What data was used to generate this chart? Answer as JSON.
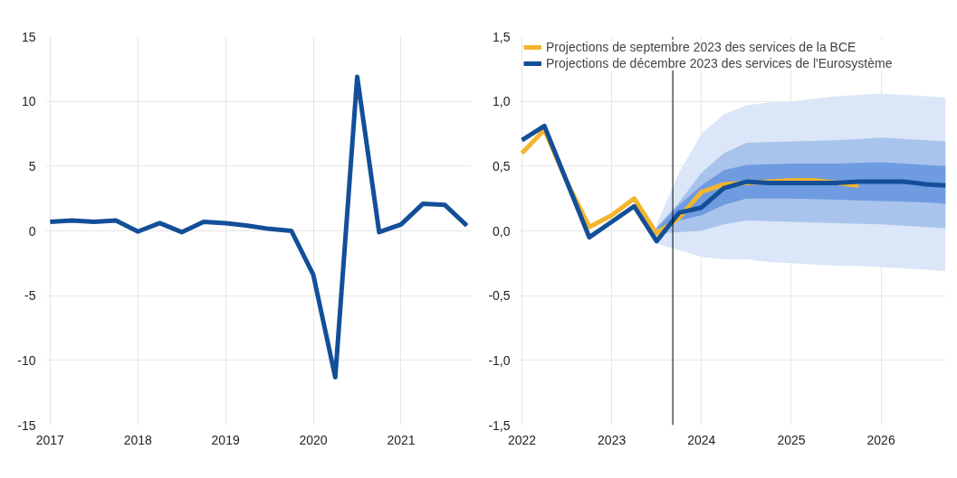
{
  "chart_data": [
    {
      "type": "line",
      "x": [
        2017,
        2017.25,
        2017.5,
        2017.75,
        2018,
        2018.25,
        2018.5,
        2018.75,
        2019,
        2019.25,
        2019.5,
        2019.75,
        2020,
        2020.25,
        2020.5,
        2020.75,
        2021,
        2021.25,
        2021.5,
        2021.75
      ],
      "series": [
        {
          "color": "#134f99",
          "values": [
            0.7,
            0.8,
            0.7,
            0.8,
            -0.05,
            0.6,
            -0.1,
            0.7,
            0.6,
            0.4,
            0.15,
            0.0,
            -3.4,
            -11.3,
            11.9,
            -0.1,
            0.5,
            2.1,
            2.0,
            0.4
          ]
        }
      ],
      "xlim": [
        2016.95,
        2021.8
      ],
      "ylim": [
        -15,
        15
      ],
      "xticks": [
        2017,
        2018,
        2019,
        2020,
        2021
      ],
      "yticks": [
        -15,
        -10,
        -5,
        0,
        5,
        10,
        15
      ],
      "grid": true,
      "legend": false
    },
    {
      "type": "line",
      "xlim": [
        2021.98,
        2026.72
      ],
      "ylim": [
        -1.5,
        1.5
      ],
      "xticks": [
        2022,
        2023,
        2024,
        2025,
        2026
      ],
      "yticks": [
        {
          "value": -1.5,
          "label": "-1,5"
        },
        {
          "value": -1.0,
          "label": "-1,0"
        },
        {
          "value": -0.5,
          "label": "-0,5"
        },
        {
          "value": 0,
          "label": "0,0"
        },
        {
          "value": 0.5,
          "label": "0,5"
        },
        {
          "value": 1.0,
          "label": "1,0"
        },
        {
          "value": 1.5,
          "label": "1,5"
        }
      ],
      "grid": true,
      "legend": "top left",
      "ref_lines": [
        {
          "axis": "x",
          "value": 2023.68,
          "color": "#000000"
        }
      ],
      "series": [
        {
          "color": "#dbe7f8",
          "x": [
            2023.5,
            2023.75,
            2024,
            2024.25,
            2024.5,
            2024.75,
            2025,
            2025.25,
            2025.5,
            2025.75,
            2026,
            2026.25,
            2026.5,
            2026.72
          ],
          "lower": [
            -0.1,
            -0.15,
            -0.2,
            -0.22,
            -0.22,
            -0.24,
            -0.25,
            -0.26,
            -0.27,
            -0.27,
            -0.28,
            -0.29,
            -0.3,
            -0.31
          ],
          "upper": [
            0.05,
            0.45,
            0.75,
            0.9,
            0.97,
            0.99,
            1.0,
            1.02,
            1.04,
            1.05,
            1.06,
            1.05,
            1.04,
            1.03
          ],
          "values": [
            null,
            null,
            null,
            null,
            null,
            null,
            null,
            null,
            null,
            null,
            null,
            null,
            null,
            null
          ]
        },
        {
          "color": "#a9c4ec",
          "x": [
            2023.5,
            2023.75,
            2024,
            2024.25,
            2024.5,
            2025,
            2025.5,
            2026,
            2026.5,
            2026.72
          ],
          "lower": [
            -0.02,
            -0.01,
            0.0,
            0.05,
            0.08,
            0.07,
            0.06,
            0.05,
            0.03,
            0.02
          ],
          "upper": [
            0.03,
            0.22,
            0.45,
            0.6,
            0.68,
            0.69,
            0.7,
            0.72,
            0.7,
            0.69
          ],
          "values": [
            null,
            null,
            null,
            null,
            null,
            null,
            null,
            null,
            null,
            null
          ]
        },
        {
          "color": "#6f9be0",
          "x": [
            2023.5,
            2023.75,
            2024,
            2024.25,
            2024.5,
            2025,
            2025.5,
            2026,
            2026.5,
            2026.72
          ],
          "lower": [
            0.01,
            0.08,
            0.12,
            0.2,
            0.25,
            0.25,
            0.24,
            0.23,
            0.22,
            0.21
          ],
          "upper": [
            0.02,
            0.2,
            0.35,
            0.47,
            0.51,
            0.52,
            0.52,
            0.53,
            0.51,
            0.5
          ],
          "values": [
            null,
            null,
            null,
            null,
            null,
            null,
            null,
            null,
            null,
            null
          ]
        },
        {
          "name": "Projections de septembre 2023 des services de la BCE",
          "color": "#f2b52c",
          "x": [
            2022,
            2022.25,
            2022.5,
            2022.75,
            2023,
            2023.25,
            2023.5,
            2023.75,
            2024,
            2024.25,
            2024.5,
            2024.75,
            2025,
            2025.25,
            2025.5,
            2025.75
          ],
          "values": [
            0.6,
            0.78,
            0.38,
            0.03,
            0.12,
            0.25,
            -0.02,
            0.1,
            0.3,
            0.36,
            0.37,
            0.38,
            0.39,
            0.39,
            0.37,
            0.35
          ]
        },
        {
          "name": "Projections de décembre 2023 des services de l'Eurosystème",
          "color": "#134f99",
          "x": [
            2022,
            2022.25,
            2022.5,
            2022.75,
            2023,
            2023.25,
            2023.5,
            2023.75,
            2024,
            2024.25,
            2024.5,
            2024.75,
            2025,
            2025.25,
            2025.5,
            2025.75,
            2026,
            2026.25,
            2026.5,
            2026.72
          ],
          "values": [
            0.7,
            0.81,
            0.38,
            -0.05,
            0.07,
            0.19,
            -0.08,
            0.14,
            0.18,
            0.33,
            0.38,
            0.37,
            0.37,
            0.37,
            0.37,
            0.38,
            0.38,
            0.38,
            0.36,
            0.35
          ]
        }
      ]
    }
  ]
}
